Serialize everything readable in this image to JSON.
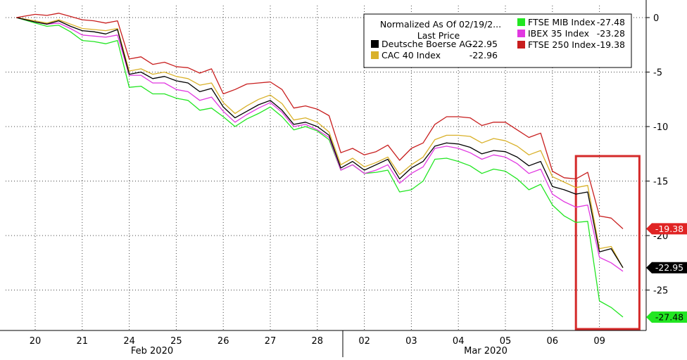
{
  "chart_data": {
    "type": "line",
    "title": "",
    "legend": {
      "header": "Normalized As Of 02/19/2...",
      "subheader": "Last Price",
      "placement": "top-right"
    },
    "x_ticks": [
      "20",
      "21",
      "24",
      "25",
      "26",
      "27",
      "28",
      "02",
      "03",
      "04",
      "05",
      "06",
      "09"
    ],
    "month_labels": [
      "Feb 2020",
      "Mar 2020"
    ],
    "y_ticks": [
      0,
      -5,
      -10,
      -15,
      -20,
      -25
    ],
    "ylim": [
      -28.5,
      0.8
    ],
    "grid": true,
    "y_axis_side": "right",
    "highlight_box": {
      "x_start": 11.5,
      "x_end": 12.85,
      "color": "#d42a2a"
    },
    "series": [
      {
        "name": "Deutsche Boerse AG...",
        "legend_value": "-22.95",
        "last_label": "-22.95",
        "color": "#000000",
        "label_bg": "#000000",
        "label_fg": "#ffffff",
        "x": [
          -0.4,
          0,
          0.25,
          0.5,
          0.75,
          1,
          1.25,
          1.5,
          1.75,
          2,
          2.25,
          2.5,
          2.75,
          3,
          3.25,
          3.5,
          3.75,
          4,
          4.25,
          4.5,
          4.75,
          5,
          5.25,
          5.5,
          5.75,
          6,
          6.25,
          6.5,
          6.75,
          7,
          7.25,
          7.5,
          7.75,
          8,
          8.25,
          8.5,
          8.75,
          9,
          9.25,
          9.5,
          9.75,
          10,
          10.25,
          10.5,
          10.75,
          11,
          11.25,
          11.5,
          11.75,
          12,
          12.25,
          12.5
        ],
        "values": [
          0,
          -0.4,
          -0.6,
          -0.3,
          -0.8,
          -1.2,
          -1.3,
          -1.5,
          -1.1,
          -5.2,
          -5.0,
          -5.6,
          -5.4,
          -5.8,
          -6.0,
          -6.8,
          -6.5,
          -8.2,
          -9.2,
          -8.6,
          -8.0,
          -7.6,
          -8.5,
          -9.8,
          -9.6,
          -10.0,
          -10.8,
          -13.8,
          -13.2,
          -14.0,
          -13.5,
          -13.0,
          -14.8,
          -13.8,
          -13.2,
          -11.8,
          -11.5,
          -11.6,
          -11.9,
          -12.5,
          -12.2,
          -12.3,
          -12.8,
          -13.6,
          -13.2,
          -15.5,
          -15.8,
          -16.2,
          -16.0,
          -21.5,
          -21.2,
          -22.95
        ]
      },
      {
        "name": "CAC 40 Index",
        "legend_value": "-22.96",
        "last_label": "",
        "color": "#d9b12a",
        "x": [
          -0.4,
          0,
          0.25,
          0.5,
          0.75,
          1,
          1.25,
          1.5,
          1.75,
          2,
          2.25,
          2.5,
          2.75,
          3,
          3.25,
          3.5,
          3.75,
          4,
          4.25,
          4.5,
          4.75,
          5,
          5.25,
          5.5,
          5.75,
          6,
          6.25,
          6.5,
          6.75,
          7,
          7.25,
          7.5,
          7.75,
          8,
          8.25,
          8.5,
          8.75,
          9,
          9.25,
          9.5,
          9.75,
          10,
          10.25,
          10.5,
          10.75,
          11,
          11.25,
          11.5,
          11.75,
          12,
          12.25,
          12.5
        ],
        "values": [
          0,
          -0.3,
          -0.5,
          -0.2,
          -0.6,
          -1.0,
          -1.1,
          -1.2,
          -1.0,
          -4.9,
          -4.7,
          -5.2,
          -5.0,
          -5.4,
          -5.6,
          -6.2,
          -6.0,
          -7.8,
          -8.8,
          -8.1,
          -7.5,
          -7.1,
          -7.9,
          -9.4,
          -9.2,
          -9.6,
          -10.5,
          -13.5,
          -12.9,
          -13.7,
          -13.3,
          -12.8,
          -14.4,
          -13.5,
          -12.8,
          -11.2,
          -10.8,
          -10.8,
          -10.9,
          -11.5,
          -11.1,
          -11.3,
          -11.8,
          -12.6,
          -12.2,
          -14.6,
          -15.1,
          -15.6,
          -15.4,
          -21.2,
          -21.0,
          -22.96
        ]
      },
      {
        "name": "FTSE MIB Index",
        "legend_value": "-27.48",
        "last_label": "-27.48",
        "color": "#22e622",
        "label_bg": "#22e622",
        "label_fg": "#000000",
        "x": [
          -0.4,
          0,
          0.25,
          0.5,
          0.75,
          1,
          1.25,
          1.5,
          1.75,
          2,
          2.25,
          2.5,
          2.75,
          3,
          3.25,
          3.5,
          3.75,
          4,
          4.25,
          4.5,
          4.75,
          5,
          5.25,
          5.5,
          5.75,
          6,
          6.25,
          6.5,
          6.75,
          7,
          7.25,
          7.5,
          7.75,
          8,
          8.25,
          8.5,
          8.75,
          9,
          9.25,
          9.5,
          9.75,
          10,
          10.25,
          10.5,
          10.75,
          11,
          11.25,
          11.5,
          11.75,
          12,
          12.25,
          12.5
        ],
        "values": [
          0,
          -0.5,
          -0.8,
          -0.7,
          -1.3,
          -2.1,
          -2.2,
          -2.4,
          -2.1,
          -6.4,
          -6.3,
          -7.0,
          -7.0,
          -7.4,
          -7.6,
          -8.5,
          -8.3,
          -9.1,
          -10.0,
          -9.3,
          -8.8,
          -8.2,
          -9.1,
          -10.3,
          -10.0,
          -10.4,
          -11.2,
          -14.0,
          -13.5,
          -14.3,
          -14.2,
          -14.0,
          -16.0,
          -15.8,
          -15.0,
          -13.0,
          -12.9,
          -13.2,
          -13.6,
          -14.3,
          -13.9,
          -14.1,
          -14.8,
          -15.8,
          -15.3,
          -17.2,
          -18.2,
          -18.8,
          -18.7,
          -26.0,
          -26.6,
          -27.48
        ]
      },
      {
        "name": "IBEX 35 Index",
        "legend_value": "-23.28",
        "last_label": "",
        "color": "#e138e1",
        "x": [
          -0.4,
          0,
          0.25,
          0.5,
          0.75,
          1,
          1.25,
          1.5,
          1.75,
          2,
          2.25,
          2.5,
          2.75,
          3,
          3.25,
          3.5,
          3.75,
          4,
          4.25,
          4.5,
          4.75,
          5,
          5.25,
          5.5,
          5.75,
          6,
          6.25,
          6.5,
          6.75,
          7,
          7.25,
          7.5,
          7.75,
          8,
          8.25,
          8.5,
          8.75,
          9,
          9.25,
          9.5,
          9.75,
          10,
          10.25,
          10.5,
          10.75,
          11,
          11.25,
          11.5,
          11.75,
          12,
          12.25,
          12.5
        ],
        "values": [
          0,
          -0.4,
          -0.6,
          -0.5,
          -1.0,
          -1.6,
          -1.7,
          -1.8,
          -1.6,
          -5.3,
          -5.3,
          -6.0,
          -6.0,
          -6.6,
          -6.8,
          -7.6,
          -7.3,
          -8.6,
          -9.6,
          -8.9,
          -8.3,
          -7.8,
          -8.7,
          -10.0,
          -9.8,
          -10.3,
          -11.0,
          -14.0,
          -13.5,
          -14.3,
          -14.0,
          -13.5,
          -15.2,
          -14.3,
          -13.7,
          -12.0,
          -11.8,
          -12.0,
          -12.4,
          -13.0,
          -12.6,
          -12.8,
          -13.4,
          -14.3,
          -13.9,
          -16.2,
          -16.9,
          -17.4,
          -17.2,
          -22.0,
          -22.5,
          -23.28
        ]
      },
      {
        "name": "FTSE 250 Index",
        "legend_value": "-19.38",
        "last_label": "-19.38",
        "color": "#c81e1e",
        "label_bg": "#e02424",
        "label_fg": "#ffffff",
        "x": [
          -0.4,
          0,
          0.25,
          0.5,
          0.75,
          1,
          1.25,
          1.5,
          1.75,
          2,
          2.25,
          2.5,
          2.75,
          3,
          3.25,
          3.5,
          3.75,
          4,
          4.25,
          4.5,
          4.75,
          5,
          5.25,
          5.5,
          5.75,
          6,
          6.25,
          6.5,
          6.75,
          7,
          7.25,
          7.5,
          7.75,
          8,
          8.25,
          8.5,
          8.75,
          9,
          9.25,
          9.5,
          9.75,
          10,
          10.25,
          10.5,
          10.75,
          11,
          11.25,
          11.5,
          11.75,
          12,
          12.25,
          12.5
        ],
        "values": [
          0,
          0.3,
          0.2,
          0.4,
          0.1,
          -0.2,
          -0.3,
          -0.5,
          -0.3,
          -3.8,
          -3.6,
          -4.3,
          -4.1,
          -4.5,
          -4.6,
          -5.1,
          -4.7,
          -7.0,
          -6.6,
          -6.1,
          -6.0,
          -5.9,
          -6.6,
          -8.3,
          -8.1,
          -8.4,
          -9.0,
          -12.4,
          -12.0,
          -12.6,
          -12.3,
          -11.7,
          -13.1,
          -12.0,
          -11.5,
          -9.8,
          -9.1,
          -9.1,
          -9.2,
          -9.9,
          -9.6,
          -9.6,
          -10.3,
          -11.0,
          -10.6,
          -14.1,
          -14.7,
          -14.8,
          -14.2,
          -18.2,
          -18.4,
          -19.38
        ]
      }
    ]
  }
}
